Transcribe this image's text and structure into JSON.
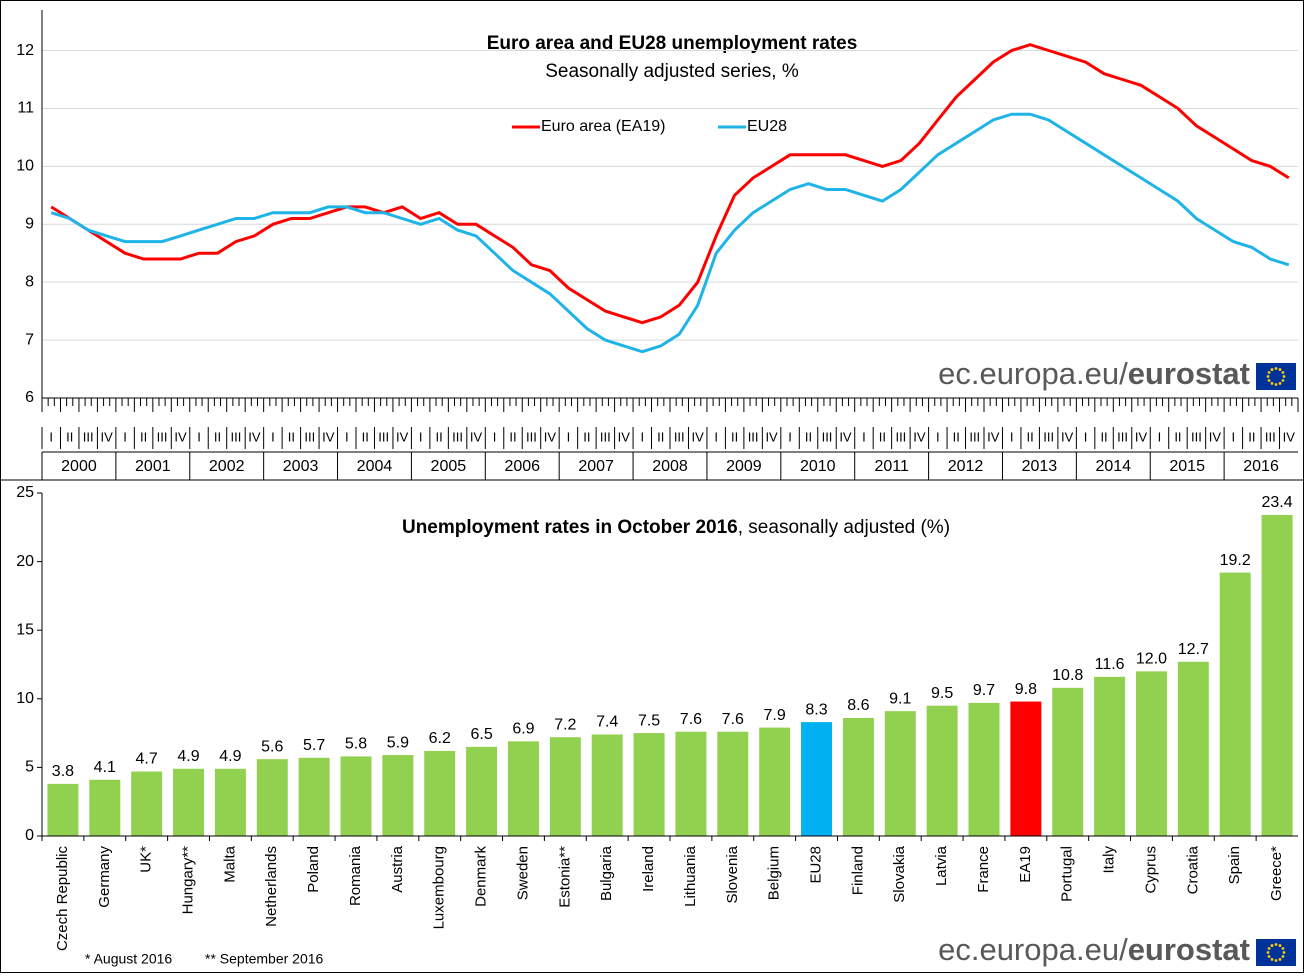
{
  "chart_data": [
    {
      "type": "line",
      "title": "Euro area and EU28 unemployment rates",
      "subtitle": "Seasonally adjusted series, %",
      "years": [
        "2000",
        "2001",
        "2002",
        "2003",
        "2004",
        "2005",
        "2006",
        "2007",
        "2008",
        "2009",
        "2010",
        "2011",
        "2012",
        "2013",
        "2014",
        "2015",
        "2016"
      ],
      "quarter_labels": [
        "I",
        "II",
        "III",
        "IV"
      ],
      "series": [
        {
          "name": "Euro area (EA19)",
          "color": "#ff0000",
          "values": [
            9.3,
            9.1,
            8.9,
            8.7,
            8.5,
            8.4,
            8.4,
            8.4,
            8.5,
            8.5,
            8.7,
            8.8,
            9.0,
            9.1,
            9.1,
            9.2,
            9.3,
            9.3,
            9.2,
            9.3,
            9.1,
            9.2,
            9.0,
            9.0,
            8.8,
            8.6,
            8.3,
            8.2,
            7.9,
            7.7,
            7.5,
            7.4,
            7.3,
            7.4,
            7.6,
            8.0,
            8.8,
            9.5,
            9.8,
            10.0,
            10.2,
            10.2,
            10.2,
            10.2,
            10.1,
            10.0,
            10.1,
            10.4,
            10.8,
            11.2,
            11.5,
            11.8,
            12.0,
            12.1,
            12.0,
            11.9,
            11.8,
            11.6,
            11.5,
            11.4,
            11.2,
            11.0,
            10.7,
            10.5,
            10.3,
            10.1,
            10.0,
            9.8
          ]
        },
        {
          "name": "EU28",
          "color": "#1fb4e8",
          "values": [
            9.2,
            9.1,
            8.9,
            8.8,
            8.7,
            8.7,
            8.7,
            8.8,
            8.9,
            9.0,
            9.1,
            9.1,
            9.2,
            9.2,
            9.2,
            9.3,
            9.3,
            9.2,
            9.2,
            9.1,
            9.0,
            9.1,
            8.9,
            8.8,
            8.5,
            8.2,
            8.0,
            7.8,
            7.5,
            7.2,
            7.0,
            6.9,
            6.8,
            6.9,
            7.1,
            7.6,
            8.5,
            8.9,
            9.2,
            9.4,
            9.6,
            9.7,
            9.6,
            9.6,
            9.5,
            9.4,
            9.6,
            9.9,
            10.2,
            10.4,
            10.6,
            10.8,
            10.9,
            10.9,
            10.8,
            10.6,
            10.4,
            10.2,
            10.0,
            9.8,
            9.6,
            9.4,
            9.1,
            8.9,
            8.7,
            8.6,
            8.4,
            8.3
          ]
        }
      ],
      "ylim": [
        6,
        12.7
      ],
      "yticks": [
        6,
        7,
        8,
        9,
        10,
        11,
        12
      ],
      "grid": true,
      "source_domain": "ec.europa.eu/",
      "source_name": "eurostat"
    },
    {
      "type": "bar",
      "title": "Unemployment rates in October 2016",
      "subtitle": ", seasonally adjusted (%)",
      "categories": [
        "Czech Republic",
        "Germany",
        "UK*",
        "Hungary**",
        "Malta",
        "Netherlands",
        "Poland",
        "Romania",
        "Austria",
        "Luxembourg",
        "Denmark",
        "Sweden",
        "Estonia**",
        "Bulgaria",
        "Ireland",
        "Lithuania",
        "Slovenia",
        "Belgium",
        "EU28",
        "Finland",
        "Slovakia",
        "Latvia",
        "France",
        "EA19",
        "Portugal",
        "Italy",
        "Cyprus",
        "Croatia",
        "Spain",
        "Greece*"
      ],
      "values": [
        3.8,
        4.1,
        4.7,
        4.9,
        4.9,
        5.6,
        5.7,
        5.8,
        5.9,
        6.2,
        6.5,
        6.9,
        7.2,
        7.4,
        7.5,
        7.6,
        7.6,
        7.9,
        8.3,
        8.6,
        9.1,
        9.5,
        9.7,
        9.8,
        10.8,
        11.6,
        12.0,
        12.7,
        19.2,
        23.4
      ],
      "value_labels": [
        "3.8",
        "4.1",
        "4.7",
        "4.9",
        "4.9",
        "5.6",
        "5.7",
        "5.8",
        "5.9",
        "6.2",
        "6.5",
        "6.9",
        "7.2",
        "7.4",
        "7.5",
        "7.6",
        "7.6",
        "7.9",
        "8.3",
        "8.6",
        "9.1",
        "9.5",
        "9.7",
        "9.8",
        "10.8",
        "11.6",
        "12.0",
        "12.7",
        "19.2",
        "23.4"
      ],
      "colors": [
        "#92d050",
        "#92d050",
        "#92d050",
        "#92d050",
        "#92d050",
        "#92d050",
        "#92d050",
        "#92d050",
        "#92d050",
        "#92d050",
        "#92d050",
        "#92d050",
        "#92d050",
        "#92d050",
        "#92d050",
        "#92d050",
        "#92d050",
        "#92d050",
        "#00b0f0",
        "#92d050",
        "#92d050",
        "#92d050",
        "#92d050",
        "#ff0000",
        "#92d050",
        "#92d050",
        "#92d050",
        "#92d050",
        "#92d050",
        "#92d050"
      ],
      "ylim": [
        0,
        25
      ],
      "yticks": [
        0,
        5,
        10,
        15,
        20,
        25
      ],
      "grid": false,
      "notes": [
        "* August 2016",
        "** September 2016"
      ],
      "source_domain": "ec.europa.eu/",
      "source_name": "eurostat"
    }
  ]
}
